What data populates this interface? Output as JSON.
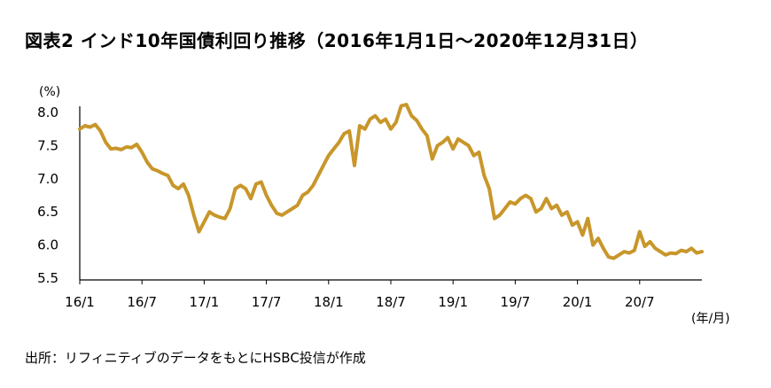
{
  "title": "図表2 インド10年国債利回り推移（2016年1月1日～2020年12月31日）",
  "source": "出所：リフィニティブのデータをもとにHSBC投信が作成",
  "chart_data": {
    "type": "line",
    "title": "図表2 インド10年国債利回り推移（2016年1月1日～2020年12月31日）",
    "ylabel_unit": "(%)",
    "xlabel_unit": "(年/月)",
    "ylim": [
      5.5,
      8.2
    ],
    "yticks": [
      "8.0",
      "7.5",
      "7.0",
      "6.5",
      "6.0",
      "5.5"
    ],
    "ytick_values": [
      8.0,
      7.5,
      7.0,
      6.5,
      6.0,
      5.5
    ],
    "xticks": [
      "16/1",
      "16/7",
      "17/1",
      "17/7",
      "18/1",
      "18/7",
      "19/1",
      "19/7",
      "20/1",
      "20/7"
    ],
    "grid": false,
    "legend": "none",
    "line_color": "#C8962A",
    "series": [
      {
        "x": [
          0,
          0.5,
          1,
          1.5,
          2,
          2.5,
          3,
          3.5,
          4,
          4.5,
          5,
          5.5,
          6,
          6.5,
          7,
          7.5,
          8,
          8.5,
          9,
          9.5,
          10,
          10.5,
          11,
          11.5,
          12,
          12.5,
          13,
          13.5,
          14,
          14.5,
          15,
          15.5,
          16,
          16.5,
          17,
          17.5,
          18,
          18.5,
          19,
          19.5,
          20,
          20.5,
          21,
          21.5,
          22,
          22.5,
          23,
          23.5,
          24,
          24.5,
          25,
          25.5,
          26,
          26.5,
          27,
          27.5,
          28,
          28.5,
          29,
          29.5,
          30,
          30.5,
          31,
          31.5,
          32,
          32.5,
          33,
          33.5,
          34,
          34.5,
          35,
          35.5,
          36,
          36.5,
          37,
          37.5,
          38,
          38.5,
          39,
          39.5,
          40,
          40.5,
          41,
          41.5,
          42,
          42.5,
          43,
          43.5,
          44,
          44.5,
          45,
          45.5,
          46,
          46.5,
          47,
          47.5,
          48,
          48.5,
          49,
          49.5,
          50,
          50.5,
          51,
          51.5,
          52,
          52.5,
          53,
          53.5,
          54,
          54.5,
          55,
          55.5,
          56,
          56.5,
          57,
          57.5,
          58,
          58.5,
          59,
          59.5,
          60
        ],
        "values": [
          7.75,
          7.8,
          7.78,
          7.82,
          7.72,
          7.55,
          7.45,
          7.46,
          7.44,
          7.48,
          7.47,
          7.52,
          7.4,
          7.25,
          7.15,
          7.12,
          7.08,
          7.05,
          6.9,
          6.85,
          6.92,
          6.75,
          6.45,
          6.2,
          6.35,
          6.5,
          6.45,
          6.42,
          6.4,
          6.55,
          6.85,
          6.9,
          6.85,
          6.7,
          6.92,
          6.95,
          6.75,
          6.6,
          6.48,
          6.45,
          6.5,
          6.55,
          6.6,
          6.75,
          6.8,
          6.9,
          7.05,
          7.2,
          7.35,
          7.45,
          7.55,
          7.68,
          7.72,
          7.2,
          7.8,
          7.75,
          7.9,
          7.95,
          7.85,
          7.9,
          7.75,
          7.85,
          8.1,
          8.12,
          7.95,
          7.88,
          7.75,
          7.65,
          7.3,
          7.5,
          7.55,
          7.62,
          7.45,
          7.6,
          7.55,
          7.5,
          7.35,
          7.4,
          7.05,
          6.85,
          6.4,
          6.45,
          6.55,
          6.65,
          6.62,
          6.7,
          6.75,
          6.7,
          6.5,
          6.55,
          6.7,
          6.55,
          6.6,
          6.45,
          6.5,
          6.3,
          6.35,
          6.15,
          6.4,
          6.0,
          6.1,
          5.95,
          5.82,
          5.8,
          5.85,
          5.9,
          5.88,
          5.92,
          6.2,
          5.98,
          6.05,
          5.95,
          5.9,
          5.85,
          5.88,
          5.87,
          5.92,
          5.9,
          5.95,
          5.88,
          5.9
        ]
      }
    ]
  }
}
